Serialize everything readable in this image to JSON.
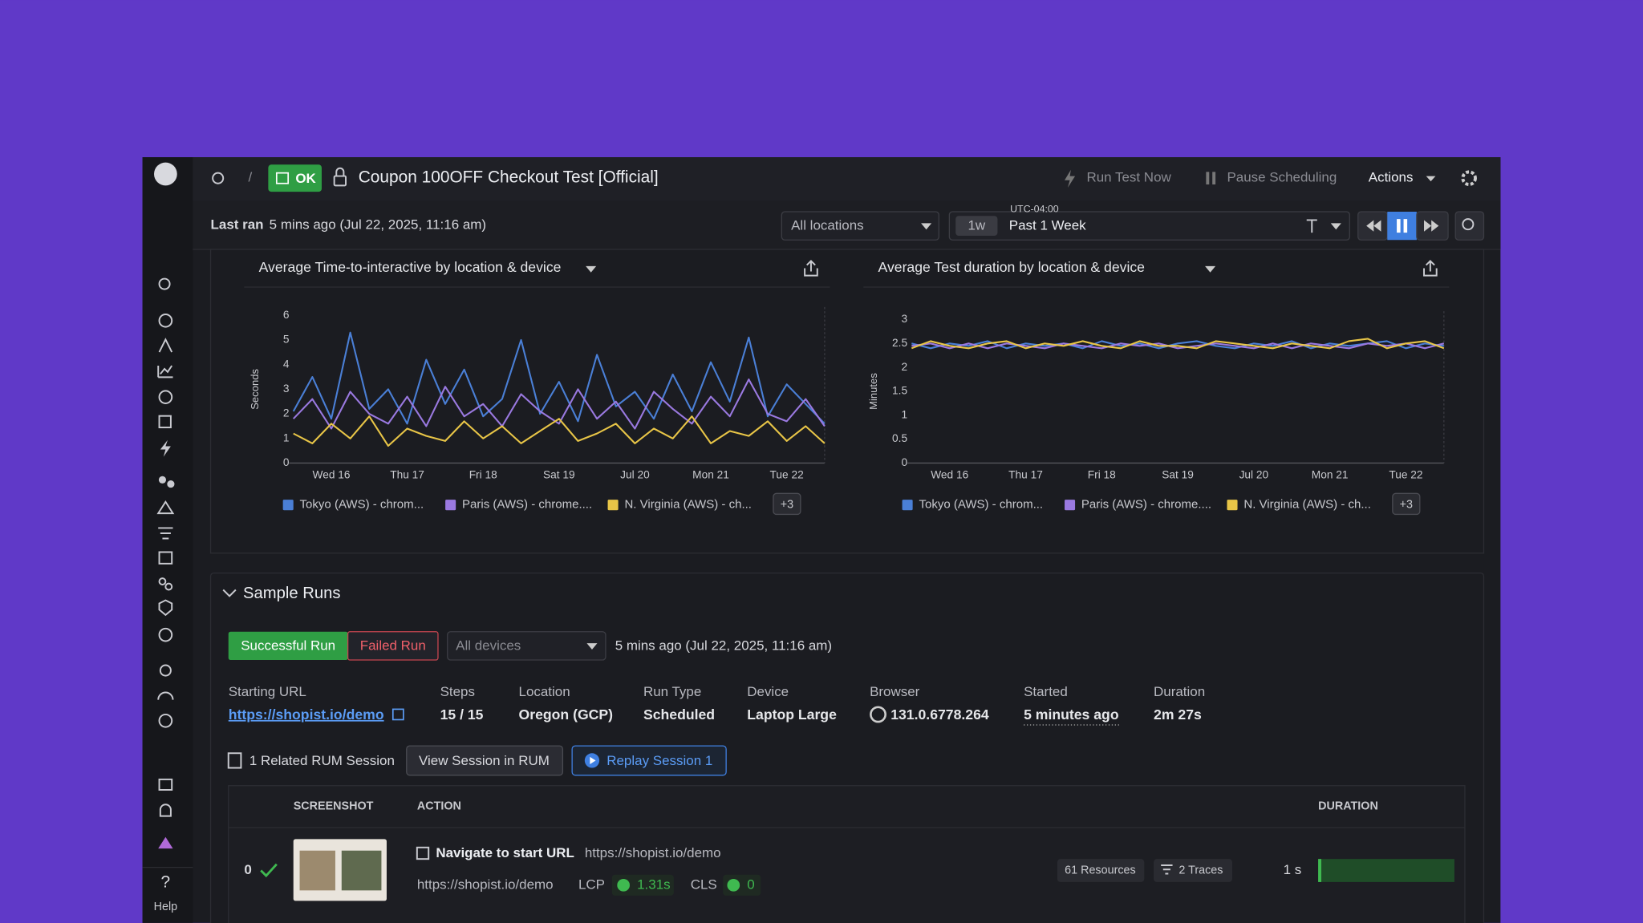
{
  "header": {
    "badge": "OK",
    "title": "Coupon 100OFF Checkout Test [Official]",
    "run_test": "Run Test Now",
    "pause": "Pause Scheduling",
    "actions": "Actions"
  },
  "toolbar": {
    "last_ran_label": "Last ran",
    "last_ran": "5 mins ago (Jul 22, 2025, 11:16 am)",
    "locations": "All locations",
    "timezone": "UTC-04:00",
    "range_short": "1w",
    "range": "Past 1 Week"
  },
  "chart_data": [
    {
      "type": "line",
      "title": "Average Time-to-interactive by location & device",
      "ylabel": "Seconds",
      "categories": [
        null,
        null,
        "Wed 16",
        null,
        null,
        null,
        "Thu 17",
        null,
        null,
        null,
        "Fri 18",
        null,
        null,
        null,
        "Sat 19",
        null,
        null,
        null,
        "Jul 20",
        null,
        null,
        null,
        "Mon 21",
        null,
        null,
        null,
        "Tue 22",
        null,
        null
      ],
      "series": [
        {
          "name": "Tokyo (AWS) - chrom...",
          "color": "#4a7fd6",
          "values": [
            2.1,
            3.5,
            1.8,
            5.3,
            2.2,
            3.0,
            1.6,
            4.2,
            2.4,
            3.8,
            1.9,
            2.6,
            5.0,
            2.0,
            3.3,
            1.7,
            4.4,
            2.3,
            2.9,
            1.8,
            3.6,
            2.1,
            4.1,
            2.5,
            5.1,
            1.9,
            3.2,
            2.4,
            1.6
          ]
        },
        {
          "name": "Paris (AWS) - chrome....",
          "color": "#9a79e0",
          "values": [
            1.8,
            2.6,
            1.4,
            2.9,
            2.0,
            1.6,
            2.7,
            1.5,
            3.1,
            1.9,
            2.4,
            1.5,
            2.8,
            2.1,
            1.6,
            3.0,
            1.8,
            2.5,
            1.4,
            2.9,
            2.2,
            1.6,
            2.7,
            1.9,
            3.4,
            2.0,
            1.7,
            2.6,
            1.5
          ]
        },
        {
          "name": "N. Virginia (AWS) - ch...",
          "color": "#e8c547",
          "values": [
            1.2,
            0.8,
            1.6,
            1.0,
            1.9,
            0.7,
            1.4,
            1.1,
            0.9,
            1.7,
            1.0,
            1.5,
            0.8,
            1.3,
            1.8,
            0.9,
            1.2,
            1.6,
            0.8,
            1.4,
            1.0,
            1.9,
            0.8,
            1.3,
            1.1,
            1.7,
            0.9,
            1.5,
            0.8
          ]
        }
      ],
      "ylim": [
        0,
        6
      ],
      "yticks": [
        0,
        1,
        2,
        3,
        4,
        5,
        6
      ],
      "grid": false,
      "legend_more": "+3"
    },
    {
      "type": "line",
      "title": "Average Test duration by location & device",
      "ylabel": "Minutes",
      "categories": [
        null,
        null,
        "Wed 16",
        null,
        null,
        null,
        "Thu 17",
        null,
        null,
        null,
        "Fri 18",
        null,
        null,
        null,
        "Sat 19",
        null,
        null,
        null,
        "Jul 20",
        null,
        null,
        null,
        "Mon 21",
        null,
        null,
        null,
        "Tue 22",
        null,
        null
      ],
      "series": [
        {
          "name": "Tokyo (AWS) - chrom...",
          "color": "#4a7fd6",
          "values": [
            2.5,
            2.4,
            2.5,
            2.45,
            2.55,
            2.4,
            2.5,
            2.45,
            2.5,
            2.4,
            2.55,
            2.45,
            2.5,
            2.4,
            2.5,
            2.55,
            2.45,
            2.4,
            2.5,
            2.45,
            2.55,
            2.4,
            2.5,
            2.45,
            2.5,
            2.55,
            2.4,
            2.5,
            2.45
          ]
        },
        {
          "name": "Paris (AWS) - chrome....",
          "color": "#9a79e0",
          "values": [
            2.45,
            2.5,
            2.4,
            2.5,
            2.4,
            2.5,
            2.45,
            2.4,
            2.5,
            2.45,
            2.4,
            2.5,
            2.45,
            2.5,
            2.4,
            2.45,
            2.5,
            2.45,
            2.4,
            2.5,
            2.4,
            2.5,
            2.45,
            2.4,
            2.5,
            2.45,
            2.5,
            2.4,
            2.5
          ]
        },
        {
          "name": "N. Virginia (AWS) - ch...",
          "color": "#e8c547",
          "values": [
            2.4,
            2.55,
            2.45,
            2.4,
            2.5,
            2.55,
            2.4,
            2.5,
            2.45,
            2.55,
            2.45,
            2.4,
            2.55,
            2.45,
            2.45,
            2.4,
            2.55,
            2.5,
            2.45,
            2.4,
            2.5,
            2.45,
            2.4,
            2.55,
            2.6,
            2.4,
            2.5,
            2.55,
            2.4
          ]
        }
      ],
      "ylim": [
        0,
        3
      ],
      "yticks": [
        0,
        0.5,
        1,
        1.5,
        2,
        2.5,
        3
      ],
      "grid": false,
      "legend_more": "+3"
    }
  ],
  "sample_runs": {
    "title": "Sample Runs",
    "tabs": [
      "Successful Run",
      "Failed Run"
    ],
    "devices": "All devices",
    "time": "5 mins ago (Jul 22, 2025, 11:16 am)",
    "details": [
      {
        "label": "Starting URL",
        "value": "https://shopist.io/demo"
      },
      {
        "label": "Steps",
        "value": "15 / 15"
      },
      {
        "label": "Location",
        "value": "Oregon (GCP)"
      },
      {
        "label": "Run Type",
        "value": "Scheduled"
      },
      {
        "label": "Device",
        "value": "Laptop Large"
      },
      {
        "label": "Browser",
        "value": "131.0.6778.264"
      },
      {
        "label": "Started",
        "value": "5 minutes ago"
      },
      {
        "label": "Duration",
        "value": "2m 27s"
      }
    ],
    "rum": "1 Related RUM Session",
    "view_rum": "View Session in RUM",
    "replay": "Replay Session 1",
    "table": {
      "columns": [
        "SCREENSHOT",
        "ACTION",
        "DURATION"
      ],
      "rows": [
        {
          "index": "0",
          "action": "Navigate to start URL",
          "url": "https://shopist.io/demo",
          "start_url": "https://shopist.io/demo",
          "lcp_label": "LCP",
          "lcp": "1.31s",
          "cls_label": "CLS",
          "cls": "0",
          "resources": "61 Resources",
          "traces": "2 Traces",
          "duration": "1 s"
        }
      ]
    }
  },
  "sidebar": {
    "help_icon": "?",
    "help": "Help"
  }
}
